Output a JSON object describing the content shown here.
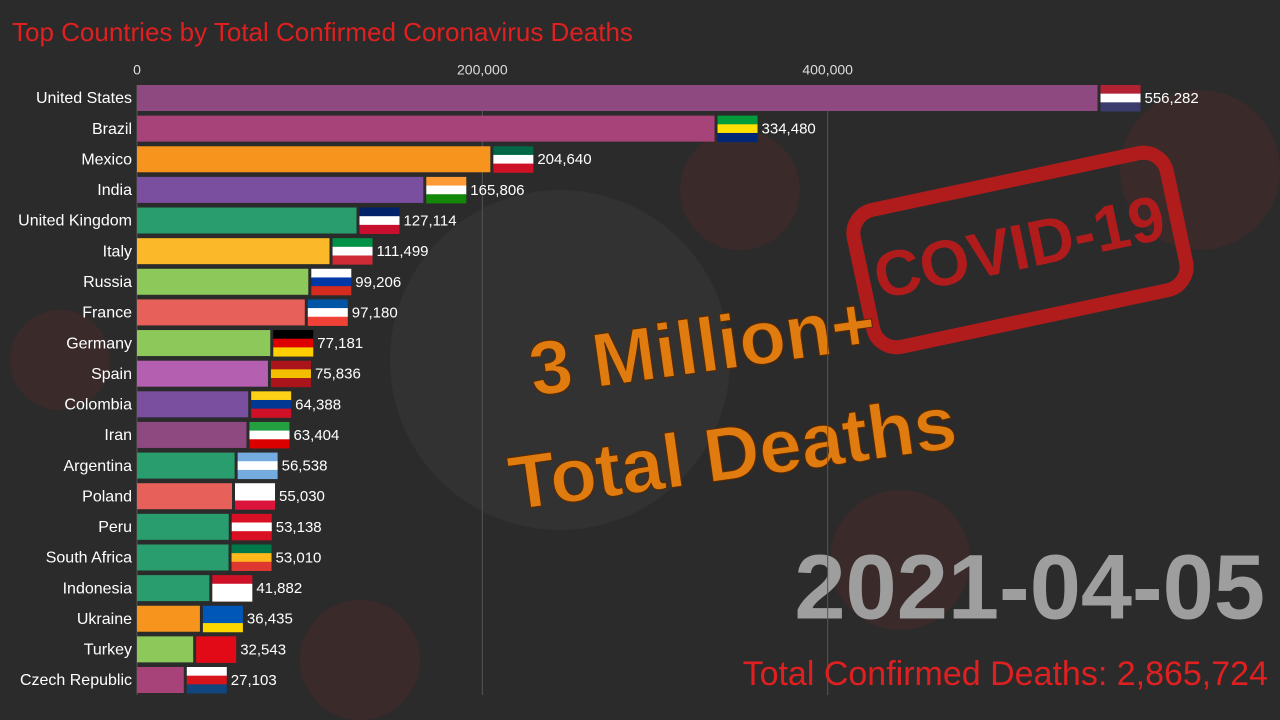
{
  "chart_data": {
    "type": "bar",
    "title": "Top Countries by Total Confirmed Coronavirus Deaths",
    "categories": [
      "United States",
      "Brazil",
      "Mexico",
      "India",
      "United Kingdom",
      "Italy",
      "Russia",
      "France",
      "Germany",
      "Spain",
      "Colombia",
      "Iran",
      "Argentina",
      "Poland",
      "Peru",
      "South Africa",
      "Indonesia",
      "Ukraine",
      "Turkey",
      "Czech Republic"
    ],
    "values": [
      556282,
      334480,
      204640,
      165806,
      127114,
      111499,
      99206,
      97180,
      77181,
      75836,
      64388,
      63404,
      56538,
      55030,
      53138,
      53010,
      41882,
      36435,
      32543,
      27103
    ],
    "value_labels": [
      "556,282",
      "334,480",
      "204,640",
      "165,806",
      "127,114",
      "111,499",
      "99,206",
      "97,180",
      "77,181",
      "75,836",
      "64,388",
      "63,404",
      "56,538",
      "55,030",
      "53,138",
      "53,010",
      "41,882",
      "36,435",
      "32,543",
      "27,103"
    ],
    "colors": [
      "#8e4a80",
      "#a8437a",
      "#f7941d",
      "#7b4fa0",
      "#2a9d6e",
      "#fbb829",
      "#8dc85a",
      "#e8605a",
      "#8dc85a",
      "#b45fb0",
      "#7b4fa0",
      "#8e4a80",
      "#2a9d6e",
      "#e8605a",
      "#2a9d6e",
      "#2a9d6e",
      "#2a9d6e",
      "#f7941d",
      "#8dc85a",
      "#a8437a"
    ],
    "xlim": [
      0,
      600000
    ],
    "xticks": [
      0,
      {
        "value": 200000,
        "label": "200,000"
      },
      {
        "value": 400000,
        "label": "400,000"
      }
    ],
    "grid": true,
    "date": "2021-04-05",
    "total_label": "Total Confirmed Deaths: 2,865,724",
    "annotations": [
      "3 Million+",
      "Total Deaths"
    ],
    "stamp": "COVID-19"
  }
}
